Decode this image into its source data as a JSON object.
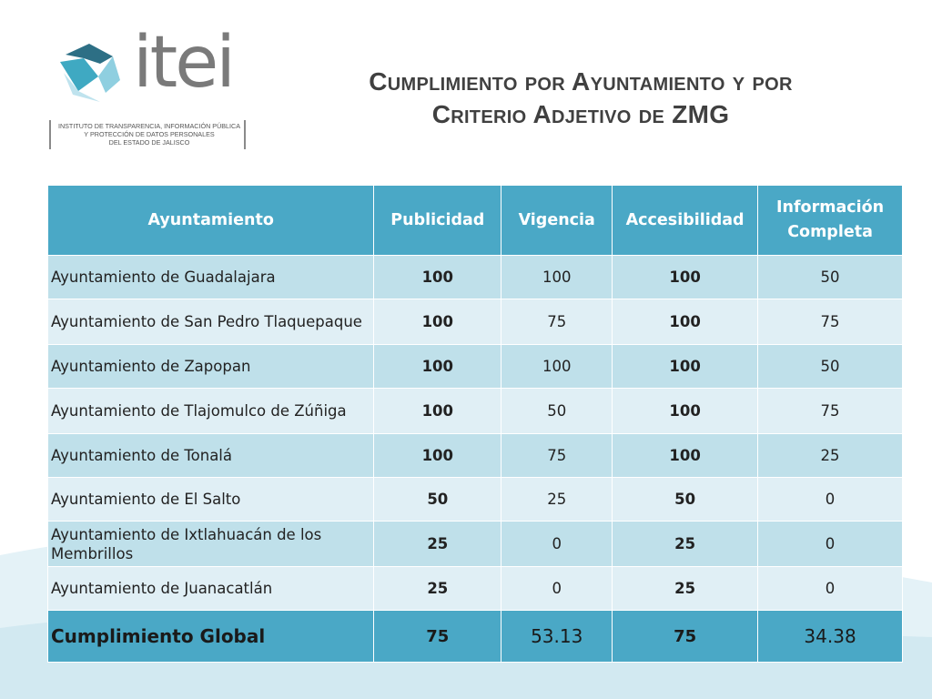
{
  "logo": {
    "wordmark": "itei",
    "caption_lines": [
      "INSTITUTO DE TRANSPARENCIA, INFORMACIÓN PÚBLICA",
      "Y PROTECCIÓN DE DATOS PERSONALES",
      "DEL ESTADO DE JALISCO"
    ]
  },
  "title": {
    "line1": "Cumplimiento por Ayuntamiento y por",
    "line2": "Criterio Adjetivo de ZMG"
  },
  "table": {
    "headers": [
      "Ayuntamiento",
      "Publicidad",
      "Vigencia",
      "Accesibilidad",
      "Información Completa"
    ],
    "rows": [
      {
        "name": "Ayuntamiento de Guadalajara",
        "publicidad": "100",
        "vigencia": "100",
        "accesibilidad": "100",
        "informacion": "50"
      },
      {
        "name": "Ayuntamiento de San Pedro Tlaquepaque",
        "publicidad": "100",
        "vigencia": "75",
        "accesibilidad": "100",
        "informacion": "75"
      },
      {
        "name": "Ayuntamiento de Zapopan",
        "publicidad": "100",
        "vigencia": "100",
        "accesibilidad": "100",
        "informacion": "50"
      },
      {
        "name": "Ayuntamiento de Tlajomulco de Zúñiga",
        "publicidad": "100",
        "vigencia": "50",
        "accesibilidad": "100",
        "informacion": "75"
      },
      {
        "name": "Ayuntamiento de Tonalá",
        "publicidad": "100",
        "vigencia": "75",
        "accesibilidad": "100",
        "informacion": "25"
      },
      {
        "name": "Ayuntamiento de El Salto",
        "publicidad": "50",
        "vigencia": "25",
        "accesibilidad": "50",
        "informacion": "0"
      },
      {
        "name": "Ayuntamiento de Ixtlahuacán de los Membrillos",
        "publicidad": "25",
        "vigencia": "0",
        "accesibilidad": "25",
        "informacion": "0"
      },
      {
        "name": "Ayuntamiento de Juanacatlán",
        "publicidad": "25",
        "vigencia": "0",
        "accesibilidad": "25",
        "informacion": "0"
      }
    ],
    "footer": {
      "name": "Cumplimiento Global",
      "publicidad": "75",
      "vigencia": "53.13",
      "accesibilidad": "75",
      "informacion": "34.38"
    }
  },
  "colors": {
    "header_bg": "#4aa8c6",
    "row_dark": "#bfe0ea",
    "row_light": "#e0eff5",
    "title_text": "#404040",
    "logo_teal": "#3fa9c2"
  }
}
